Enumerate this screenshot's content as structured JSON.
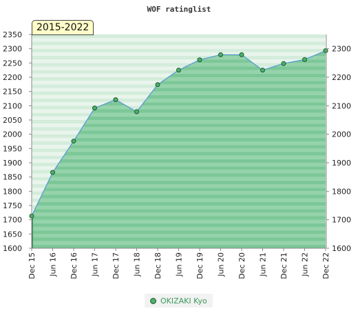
{
  "chart_data": {
    "type": "area",
    "title": "WOF ratinglist",
    "period_label": "2015-2022",
    "x": [
      "Dec 15",
      "Jun 16",
      "Dec 16",
      "Jun 17",
      "Dec 17",
      "Jun 18",
      "Dec 18",
      "Jun 19",
      "Dec 19",
      "Jun 20",
      "Dec 20",
      "Jun 21",
      "Dec 21",
      "Jun 22",
      "Dec 22"
    ],
    "series": [
      {
        "name": "OKIZAKI Kyo",
        "values": [
          1713,
          1866,
          1976,
          2092,
          2121,
          2079,
          2174,
          2225,
          2261,
          2279,
          2279,
          2225,
          2248,
          2262,
          2293
        ]
      }
    ],
    "ylim": [
      1600,
      2350
    ],
    "left_ticks": [
      1600,
      1650,
      1700,
      1750,
      1800,
      1850,
      1900,
      1950,
      2000,
      2050,
      2100,
      2150,
      2200,
      2250,
      2300,
      2350
    ],
    "right_ticks": [
      1600,
      1700,
      1800,
      1900,
      2000,
      2100,
      2200,
      2300
    ],
    "grid": true,
    "legend_position": "bottom-center",
    "colors": {
      "fill_band_a": "#7cc797",
      "fill_band_b": "#95d3aa",
      "line": "#5b9bd5",
      "marker": "#4caf6a",
      "marker_stroke": "#1e5a2e"
    }
  }
}
